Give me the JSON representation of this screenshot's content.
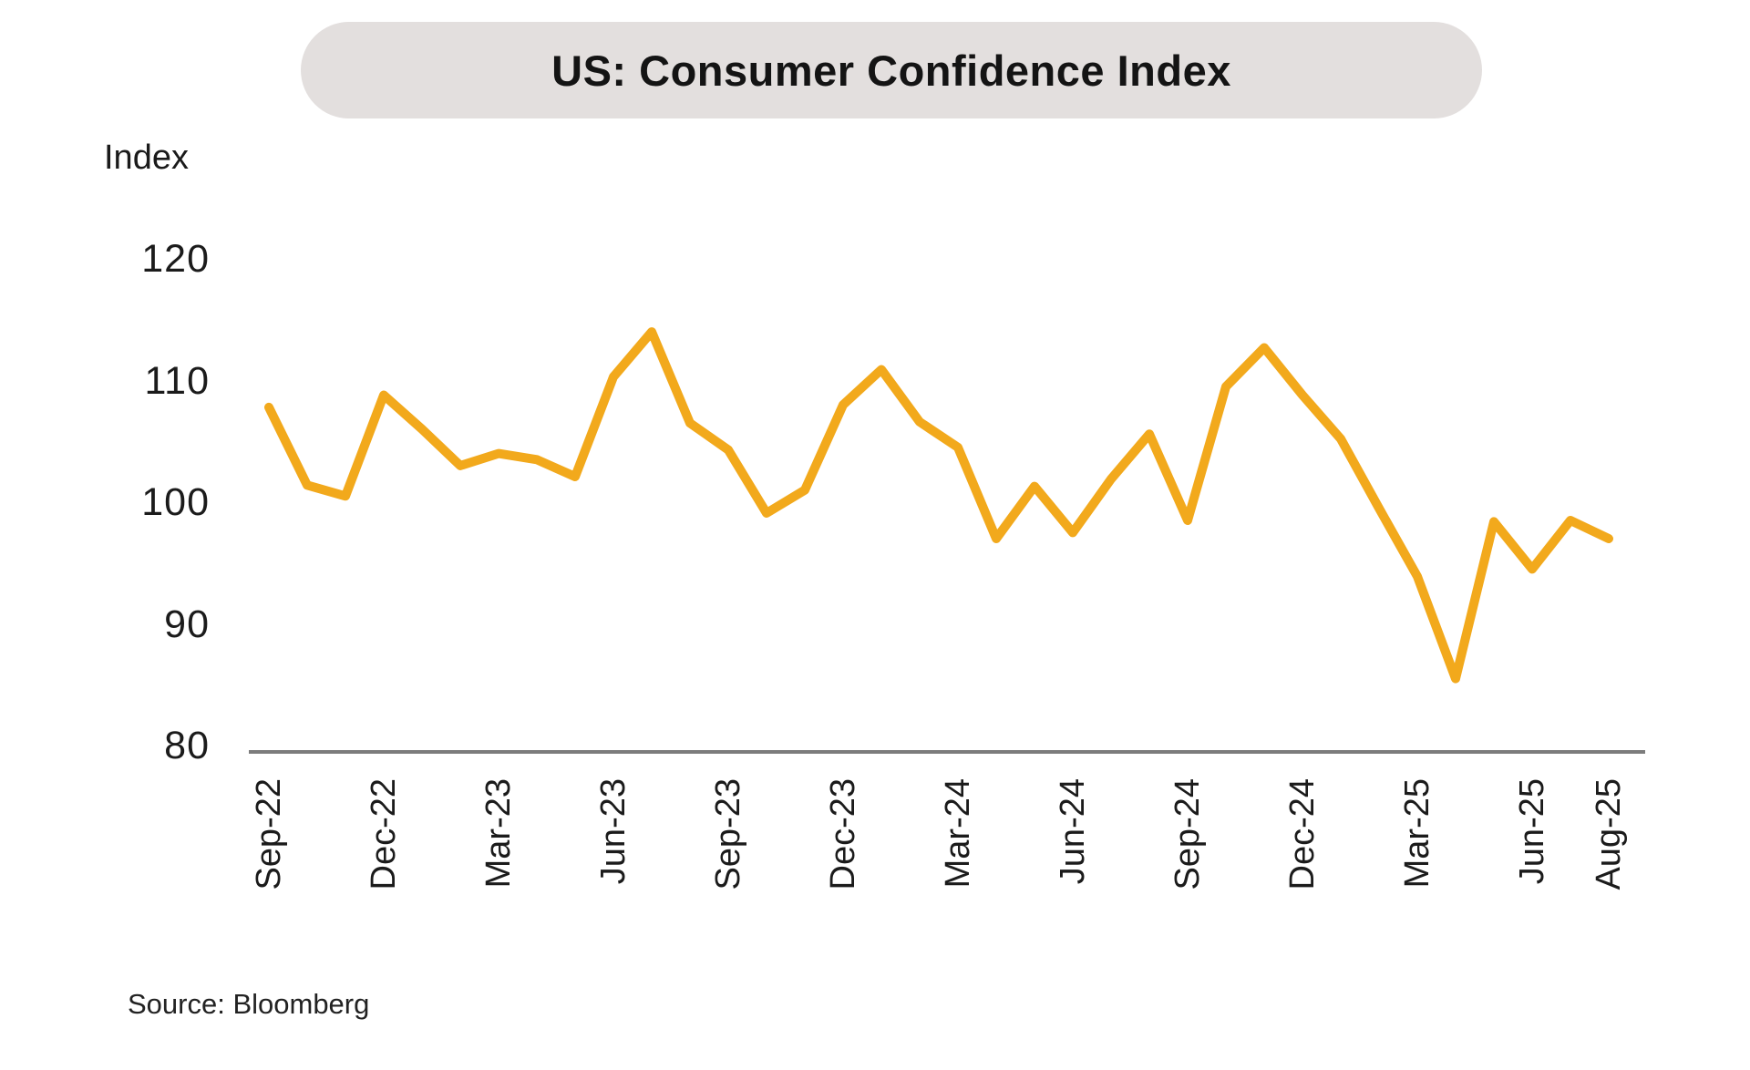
{
  "title": "US: Consumer Confidence Index",
  "y_axis_title": "Index",
  "source": "Source: Bloomberg",
  "colors": {
    "line": "#F2A91C",
    "title_pill_bg": "#E3DFDE",
    "axis_line": "#7C7C7C",
    "text": "#1A1A1A"
  },
  "chart_data": {
    "type": "line",
    "series_name": "US Consumer Confidence Index",
    "x": [
      "Sep-22",
      "Oct-22",
      "Nov-22",
      "Dec-22",
      "Jan-23",
      "Feb-23",
      "Mar-23",
      "Apr-23",
      "May-23",
      "Jun-23",
      "Jul-23",
      "Aug-23",
      "Sep-23",
      "Oct-23",
      "Nov-23",
      "Dec-23",
      "Jan-24",
      "Feb-24",
      "Mar-24",
      "Apr-24",
      "May-24",
      "Jun-24",
      "Jul-24",
      "Aug-24",
      "Sep-24",
      "Oct-24",
      "Nov-24",
      "Dec-24",
      "Jan-25",
      "Feb-25",
      "Mar-25",
      "Apr-25",
      "May-25",
      "Jun-25",
      "Jul-25",
      "Aug-25"
    ],
    "values": [
      107.8,
      101.4,
      100.5,
      108.8,
      106.0,
      103.0,
      104.0,
      103.5,
      102.1,
      110.3,
      114.0,
      106.5,
      104.3,
      99.1,
      101.0,
      108.0,
      110.9,
      106.6,
      104.5,
      97.0,
      101.3,
      97.5,
      101.9,
      105.6,
      98.5,
      109.5,
      112.7,
      108.8,
      105.2,
      99.5,
      93.9,
      85.5,
      98.4,
      94.5,
      98.5,
      97.0
    ],
    "x_tick_labels": [
      "Sep-22",
      "Dec-22",
      "Mar-23",
      "Jun-23",
      "Sep-23",
      "Dec-23",
      "Mar-24",
      "Jun-24",
      "Sep-24",
      "Dec-24",
      "Mar-25",
      "Jun-25",
      "Aug-25"
    ],
    "x_tick_indices": [
      0,
      3,
      6,
      9,
      12,
      15,
      18,
      21,
      24,
      27,
      30,
      33,
      35
    ],
    "y_ticks": [
      120,
      110,
      100,
      90,
      80
    ],
    "ylim": [
      80,
      120
    ],
    "grid": false,
    "legend": false
  }
}
